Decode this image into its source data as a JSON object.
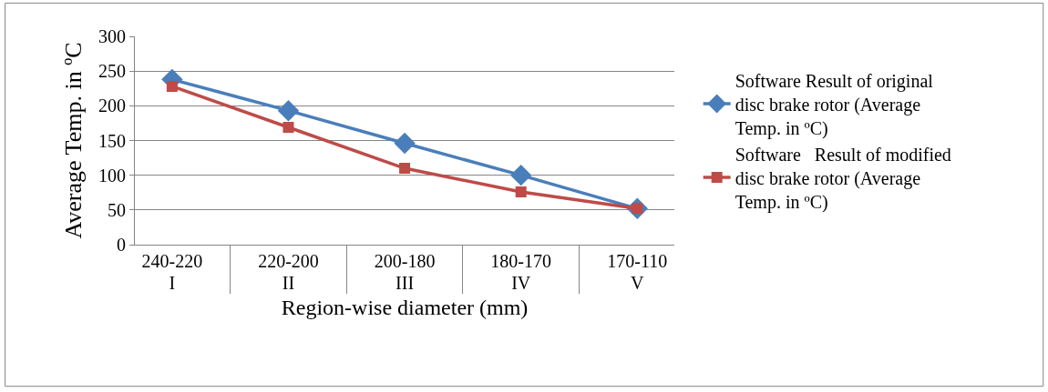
{
  "chart_data": {
    "type": "line",
    "xlabel": "Region-wise diameter (mm)",
    "ylabel": "Average Temp. in ºC",
    "categories": [
      "240-220\nI",
      "220-200\nII",
      "200-180\nIII",
      "180-170\nIV",
      "170-110\nV"
    ],
    "series": [
      {
        "name": "Software Result of original disc brake rotor (Average Temp. in ºC)",
        "color": "#4a7ebb",
        "marker": "diamond",
        "values": [
          238,
          193,
          146,
          100,
          52
        ]
      },
      {
        "name": "Software   Result of modified disc brake rotor (Average Temp. in ºC)",
        "color": "#be4b48",
        "marker": "square",
        "values": [
          228,
          169,
          110,
          76,
          52
        ]
      }
    ],
    "ylim": [
      0,
      300
    ],
    "yticks": [
      0,
      50,
      100,
      150,
      200,
      250,
      300
    ],
    "grid": "y",
    "legend": "right"
  }
}
